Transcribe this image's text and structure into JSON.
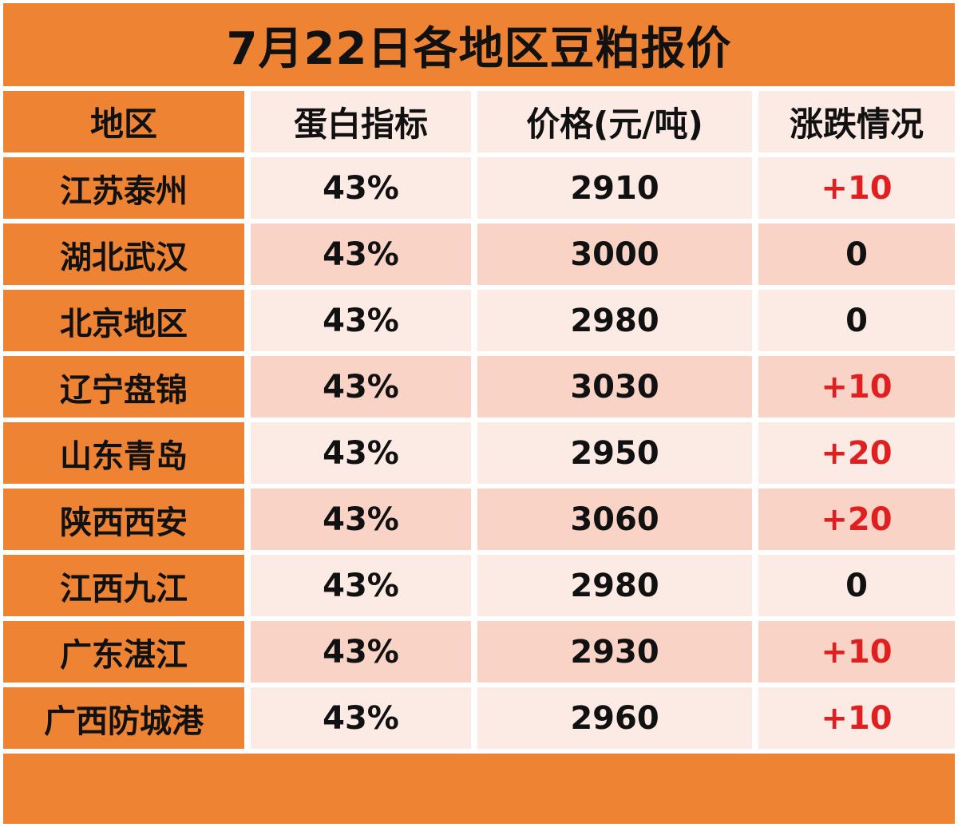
{
  "title": "7月22日各地区豆粕报价",
  "headers": [
    "地区",
    "蛋白指标",
    "价格(元/吨)",
    "涨跌情况"
  ],
  "rows": [
    {
      "region": "江苏泰州",
      "protein": "43%",
      "price": "2910",
      "change": "+10"
    },
    {
      "region": "湖北武汉",
      "protein": "43%",
      "price": "3000",
      "change": "0"
    },
    {
      "region": "北京地区",
      "protein": "43%",
      "price": "2980",
      "change": "0"
    },
    {
      "region": "辽宁盘锦",
      "protein": "43%",
      "price": "3030",
      "change": "+10"
    },
    {
      "region": "山东青岛",
      "protein": "43%",
      "price": "2950",
      "change": "+20"
    },
    {
      "region": "陕西西安",
      "protein": "43%",
      "price": "3060",
      "change": "+20"
    },
    {
      "region": "江西九江",
      "protein": "43%",
      "price": "2980",
      "change": "0"
    },
    {
      "region": "广东湛江",
      "protein": "43%",
      "price": "2930",
      "change": "+10"
    },
    {
      "region": "广西防城港",
      "protein": "43%",
      "price": "2960",
      "change": "+10"
    }
  ],
  "colors": {
    "accent": "#EE8433",
    "row_light": "#FCEAE4",
    "row_dark": "#F8D3C6",
    "rise": "#E02020"
  }
}
